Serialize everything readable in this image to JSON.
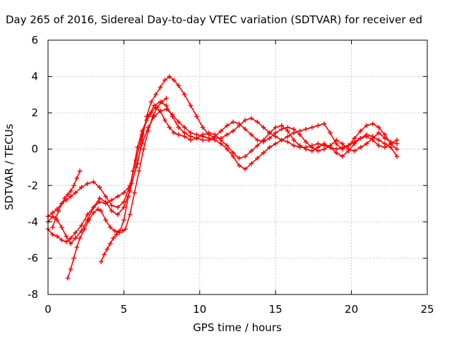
{
  "chart_data": {
    "type": "scatter",
    "title": "Day 265 of 2016, Sidereal Day-to-day VTEC variation (SDTVAR) for receiver ed",
    "xlabel": "GPS time / hours",
    "ylabel": "SDTVAR / TECUs",
    "xlim": [
      0,
      25
    ],
    "ylim": [
      -8,
      6
    ],
    "x_ticks": [
      "0",
      "5",
      "10",
      "15",
      "20",
      "25"
    ],
    "y_ticks": [
      "-8",
      "-6",
      "-4",
      "-2",
      "0",
      "2",
      "4",
      "6"
    ],
    "grid": true,
    "marker": "+",
    "color": "#ff0000",
    "series": [
      {
        "x": [
          0.0,
          0.3,
          0.6,
          0.9,
          1.2,
          1.5,
          1.8,
          2.2,
          2.6,
          3.0,
          3.4,
          3.8,
          4.2,
          4.6,
          5.0,
          5.5,
          5.9,
          6.2,
          6.5,
          6.8,
          7.1,
          7.4,
          7.7,
          8.0,
          8.3,
          8.6,
          9.0,
          9.4,
          9.8,
          10.2,
          10.6,
          11.0,
          11.4,
          11.8,
          12.2,
          12.6,
          13.0,
          13.4,
          13.8,
          14.2,
          14.6,
          15.0,
          15.4,
          15.8,
          16.2,
          16.6,
          17.0,
          17.4,
          17.8,
          18.2,
          18.6,
          19.0,
          19.4,
          19.8,
          20.2,
          20.6,
          21.0,
          21.4,
          21.8,
          22.2,
          22.6,
          23.0
        ],
        "y": [
          -4.4,
          -4.7,
          -4.8,
          -5.0,
          -5.1,
          -4.9,
          -4.6,
          -4.2,
          -3.6,
          -3.2,
          -2.9,
          -3.0,
          -2.8,
          -2.6,
          -2.4,
          -1.9,
          -0.8,
          0.5,
          1.8,
          2.6,
          3.0,
          3.4,
          3.8,
          4.0,
          3.8,
          3.5,
          3.0,
          2.4,
          1.8,
          1.2,
          0.8,
          0.6,
          0.6,
          0.8,
          1.0,
          1.3,
          1.6,
          1.7,
          1.5,
          1.2,
          0.9,
          0.7,
          0.5,
          0.4,
          0.2,
          0.1,
          0.1,
          0.2,
          0.3,
          0.2,
          0.1,
          0.0,
          0.1,
          0.2,
          0.4,
          0.6,
          0.8,
          0.7,
          0.5,
          0.3,
          0.1,
          -0.4
        ]
      },
      {
        "x": [
          0.0,
          0.3,
          0.6,
          0.9,
          1.2,
          1.5,
          1.8,
          2.2,
          2.6,
          3.0,
          3.4,
          3.8,
          4.2,
          4.6,
          5.0,
          5.4,
          5.8,
          6.2,
          6.6,
          7.0,
          7.4,
          7.8,
          8.2,
          8.6,
          9.0,
          9.4,
          9.8,
          10.2,
          10.6,
          11.0,
          11.4,
          11.8,
          12.2,
          12.6,
          13.0,
          13.4,
          13.8,
          14.2,
          14.6,
          15.0,
          15.4,
          15.8,
          16.2,
          16.6,
          17.0,
          17.4,
          17.8,
          18.2,
          18.6,
          19.0,
          19.4,
          19.8,
          20.2,
          20.6,
          21.0,
          21.4,
          21.8,
          22.2,
          22.6,
          23.0
        ],
        "y": [
          -3.7,
          -3.5,
          -3.3,
          -3.0,
          -2.8,
          -2.6,
          -2.4,
          -2.1,
          -1.9,
          -1.8,
          -2.1,
          -2.6,
          -3.1,
          -3.2,
          -2.9,
          -2.0,
          -0.6,
          0.8,
          1.8,
          2.4,
          2.6,
          2.4,
          1.8,
          1.2,
          0.9,
          0.7,
          0.6,
          0.5,
          0.5,
          0.7,
          1.0,
          1.3,
          1.5,
          1.4,
          1.1,
          0.8,
          0.5,
          0.4,
          0.6,
          0.9,
          1.1,
          1.2,
          1.1,
          0.8,
          0.4,
          0.1,
          -0.1,
          0.0,
          0.2,
          0.5,
          0.3,
          0.0,
          -0.1,
          0.1,
          0.3,
          0.6,
          0.9,
          0.6,
          0.4,
          0.3
        ]
      },
      {
        "x": [
          0.0,
          0.3,
          0.6,
          0.9,
          1.2,
          1.5,
          1.8,
          2.2,
          2.6,
          3.0,
          3.4,
          3.8,
          4.2,
          4.6,
          5.0,
          5.4,
          5.8,
          6.2,
          6.6,
          7.0,
          7.4,
          7.8,
          8.2,
          8.6,
          9.0,
          9.4,
          9.8,
          10.2,
          10.6,
          11.0,
          11.4,
          11.8,
          12.2,
          12.6,
          13.0,
          13.4,
          13.8,
          14.2,
          14.6,
          15.0,
          15.4,
          15.8,
          16.2,
          16.6,
          17.0,
          17.4,
          17.8,
          18.2,
          18.6,
          19.0,
          19.4,
          19.8,
          20.2,
          20.6,
          21.0,
          21.4,
          21.8,
          22.2,
          22.6,
          23.0
        ],
        "y": [
          -4.0,
          -3.7,
          -3.9,
          -4.3,
          -4.8,
          -5.2,
          -4.9,
          -4.5,
          -3.9,
          -3.2,
          -2.7,
          -2.9,
          -3.4,
          -3.6,
          -3.2,
          -2.3,
          -1.0,
          0.3,
          1.2,
          1.8,
          2.1,
          2.2,
          1.9,
          1.5,
          1.2,
          0.9,
          0.8,
          0.7,
          0.6,
          0.5,
          0.3,
          0.0,
          -0.4,
          -0.9,
          -1.1,
          -0.8,
          -0.5,
          -0.2,
          0.1,
          0.3,
          0.5,
          0.7,
          0.9,
          1.0,
          1.1,
          1.2,
          1.3,
          1.4,
          0.9,
          0.3,
          0.0,
          0.2,
          0.6,
          1.0,
          1.3,
          1.4,
          1.2,
          0.8,
          0.3,
          0.0
        ]
      },
      {
        "x": [
          1.3,
          1.5,
          1.7,
          1.9,
          2.1,
          2.4,
          2.7,
          3.0,
          3.3,
          3.5,
          3.8,
          4.1,
          4.4,
          4.7,
          5.0,
          5.3,
          5.6,
          5.9,
          6.2,
          6.5,
          6.8,
          7.1,
          7.4,
          7.7,
          8.0,
          8.3,
          8.6,
          9.0,
          9.4,
          9.8,
          10.2,
          10.6,
          11.0,
          11.4,
          11.8,
          12.2,
          12.6,
          13.0,
          13.4,
          13.8,
          14.2,
          14.6,
          15.0,
          15.4,
          15.8,
          16.2,
          16.6,
          17.0,
          17.4,
          17.8,
          18.2,
          18.6,
          19.0,
          19.4,
          19.8,
          20.2,
          20.6,
          21.0,
          21.4,
          21.8,
          22.2,
          22.6,
          23.0
        ],
        "y": [
          -7.1,
          -6.6,
          -6.0,
          -5.4,
          -4.9,
          -4.4,
          -3.9,
          -3.5,
          -3.3,
          -3.4,
          -3.9,
          -4.3,
          -4.5,
          -4.6,
          -3.9,
          -2.6,
          -1.2,
          0.1,
          1.0,
          1.6,
          2.0,
          2.3,
          2.1,
          1.6,
          1.2,
          0.9,
          0.8,
          0.7,
          0.5,
          0.6,
          0.8,
          0.9,
          0.8,
          0.5,
          0.2,
          -0.2,
          -0.5,
          -0.4,
          -0.1,
          0.2,
          0.5,
          0.9,
          1.2,
          1.3,
          1.0,
          0.5,
          0.2,
          0.0,
          -0.1,
          0.1,
          0.3,
          0.1,
          -0.2,
          -0.4,
          -0.1,
          0.3,
          0.6,
          0.7,
          0.5,
          0.2,
          0.1,
          0.3,
          0.5
        ]
      },
      {
        "x": [
          3.5,
          3.7,
          3.9,
          4.1,
          4.3,
          4.5,
          4.7,
          4.9,
          5.1,
          5.4,
          5.7,
          6.0,
          6.3,
          6.6,
          6.9,
          7.2,
          7.5,
          7.8
        ],
        "y": [
          -6.2,
          -5.8,
          -5.5,
          -5.2,
          -4.9,
          -4.7,
          -4.5,
          -4.5,
          -4.4,
          -3.6,
          -2.4,
          -1.2,
          0.0,
          1.0,
          1.8,
          2.3,
          2.6,
          2.8
        ]
      },
      {
        "x": [
          0.3,
          0.5,
          0.7,
          0.9,
          1.1,
          1.3,
          1.5,
          1.7,
          1.9,
          2.1
        ],
        "y": [
          -4.3,
          -3.8,
          -3.4,
          -3.0,
          -2.7,
          -2.5,
          -2.3,
          -2.0,
          -1.6,
          -1.2
        ]
      }
    ]
  }
}
